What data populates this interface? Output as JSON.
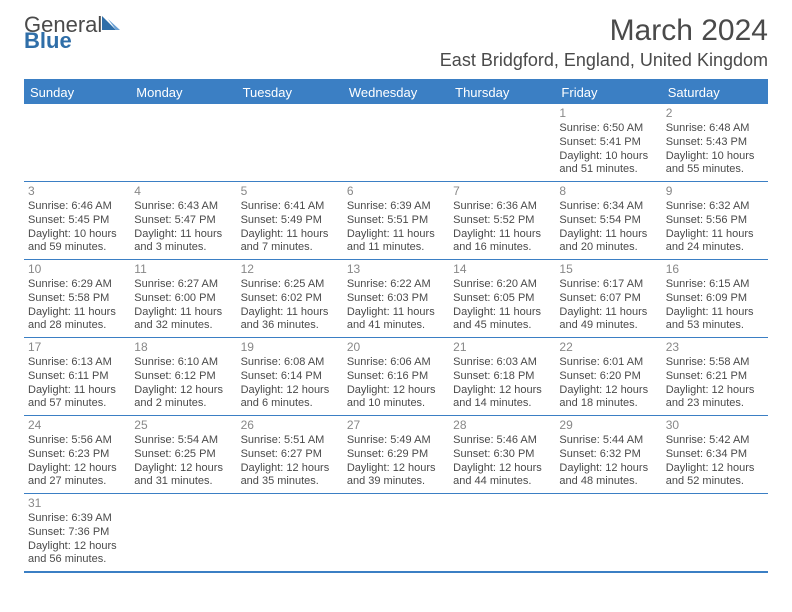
{
  "logo": {
    "word1": "General",
    "word2": "Blue"
  },
  "title": {
    "month": "March 2024",
    "location": "East Bridgford, England, United Kingdom"
  },
  "colors": {
    "header_bg": "#3b7fc4",
    "header_fg": "#ffffff",
    "rule": "#3b7fc4",
    "text": "#4a4a4a",
    "daynum": "#888888",
    "logo_blue": "#2f6ea8"
  },
  "day_labels": [
    "Sunday",
    "Monday",
    "Tuesday",
    "Wednesday",
    "Thursday",
    "Friday",
    "Saturday"
  ],
  "weeks": [
    [
      null,
      null,
      null,
      null,
      null,
      {
        "n": "1",
        "sunrise": "6:50 AM",
        "sunset": "5:41 PM",
        "dl_h": 10,
        "dl_m": 51
      },
      {
        "n": "2",
        "sunrise": "6:48 AM",
        "sunset": "5:43 PM",
        "dl_h": 10,
        "dl_m": 55
      }
    ],
    [
      {
        "n": "3",
        "sunrise": "6:46 AM",
        "sunset": "5:45 PM",
        "dl_h": 10,
        "dl_m": 59
      },
      {
        "n": "4",
        "sunrise": "6:43 AM",
        "sunset": "5:47 PM",
        "dl_h": 11,
        "dl_m": 3
      },
      {
        "n": "5",
        "sunrise": "6:41 AM",
        "sunset": "5:49 PM",
        "dl_h": 11,
        "dl_m": 7
      },
      {
        "n": "6",
        "sunrise": "6:39 AM",
        "sunset": "5:51 PM",
        "dl_h": 11,
        "dl_m": 11
      },
      {
        "n": "7",
        "sunrise": "6:36 AM",
        "sunset": "5:52 PM",
        "dl_h": 11,
        "dl_m": 16
      },
      {
        "n": "8",
        "sunrise": "6:34 AM",
        "sunset": "5:54 PM",
        "dl_h": 11,
        "dl_m": 20
      },
      {
        "n": "9",
        "sunrise": "6:32 AM",
        "sunset": "5:56 PM",
        "dl_h": 11,
        "dl_m": 24
      }
    ],
    [
      {
        "n": "10",
        "sunrise": "6:29 AM",
        "sunset": "5:58 PM",
        "dl_h": 11,
        "dl_m": 28
      },
      {
        "n": "11",
        "sunrise": "6:27 AM",
        "sunset": "6:00 PM",
        "dl_h": 11,
        "dl_m": 32
      },
      {
        "n": "12",
        "sunrise": "6:25 AM",
        "sunset": "6:02 PM",
        "dl_h": 11,
        "dl_m": 36
      },
      {
        "n": "13",
        "sunrise": "6:22 AM",
        "sunset": "6:03 PM",
        "dl_h": 11,
        "dl_m": 41
      },
      {
        "n": "14",
        "sunrise": "6:20 AM",
        "sunset": "6:05 PM",
        "dl_h": 11,
        "dl_m": 45
      },
      {
        "n": "15",
        "sunrise": "6:17 AM",
        "sunset": "6:07 PM",
        "dl_h": 11,
        "dl_m": 49
      },
      {
        "n": "16",
        "sunrise": "6:15 AM",
        "sunset": "6:09 PM",
        "dl_h": 11,
        "dl_m": 53
      }
    ],
    [
      {
        "n": "17",
        "sunrise": "6:13 AM",
        "sunset": "6:11 PM",
        "dl_h": 11,
        "dl_m": 57
      },
      {
        "n": "18",
        "sunrise": "6:10 AM",
        "sunset": "6:12 PM",
        "dl_h": 12,
        "dl_m": 2
      },
      {
        "n": "19",
        "sunrise": "6:08 AM",
        "sunset": "6:14 PM",
        "dl_h": 12,
        "dl_m": 6
      },
      {
        "n": "20",
        "sunrise": "6:06 AM",
        "sunset": "6:16 PM",
        "dl_h": 12,
        "dl_m": 10
      },
      {
        "n": "21",
        "sunrise": "6:03 AM",
        "sunset": "6:18 PM",
        "dl_h": 12,
        "dl_m": 14
      },
      {
        "n": "22",
        "sunrise": "6:01 AM",
        "sunset": "6:20 PM",
        "dl_h": 12,
        "dl_m": 18
      },
      {
        "n": "23",
        "sunrise": "5:58 AM",
        "sunset": "6:21 PM",
        "dl_h": 12,
        "dl_m": 23
      }
    ],
    [
      {
        "n": "24",
        "sunrise": "5:56 AM",
        "sunset": "6:23 PM",
        "dl_h": 12,
        "dl_m": 27
      },
      {
        "n": "25",
        "sunrise": "5:54 AM",
        "sunset": "6:25 PM",
        "dl_h": 12,
        "dl_m": 31
      },
      {
        "n": "26",
        "sunrise": "5:51 AM",
        "sunset": "6:27 PM",
        "dl_h": 12,
        "dl_m": 35
      },
      {
        "n": "27",
        "sunrise": "5:49 AM",
        "sunset": "6:29 PM",
        "dl_h": 12,
        "dl_m": 39
      },
      {
        "n": "28",
        "sunrise": "5:46 AM",
        "sunset": "6:30 PM",
        "dl_h": 12,
        "dl_m": 44
      },
      {
        "n": "29",
        "sunrise": "5:44 AM",
        "sunset": "6:32 PM",
        "dl_h": 12,
        "dl_m": 48
      },
      {
        "n": "30",
        "sunrise": "5:42 AM",
        "sunset": "6:34 PM",
        "dl_h": 12,
        "dl_m": 52
      }
    ],
    [
      {
        "n": "31",
        "sunrise": "6:39 AM",
        "sunset": "7:36 PM",
        "dl_h": 12,
        "dl_m": 56
      },
      null,
      null,
      null,
      null,
      null,
      null
    ]
  ]
}
